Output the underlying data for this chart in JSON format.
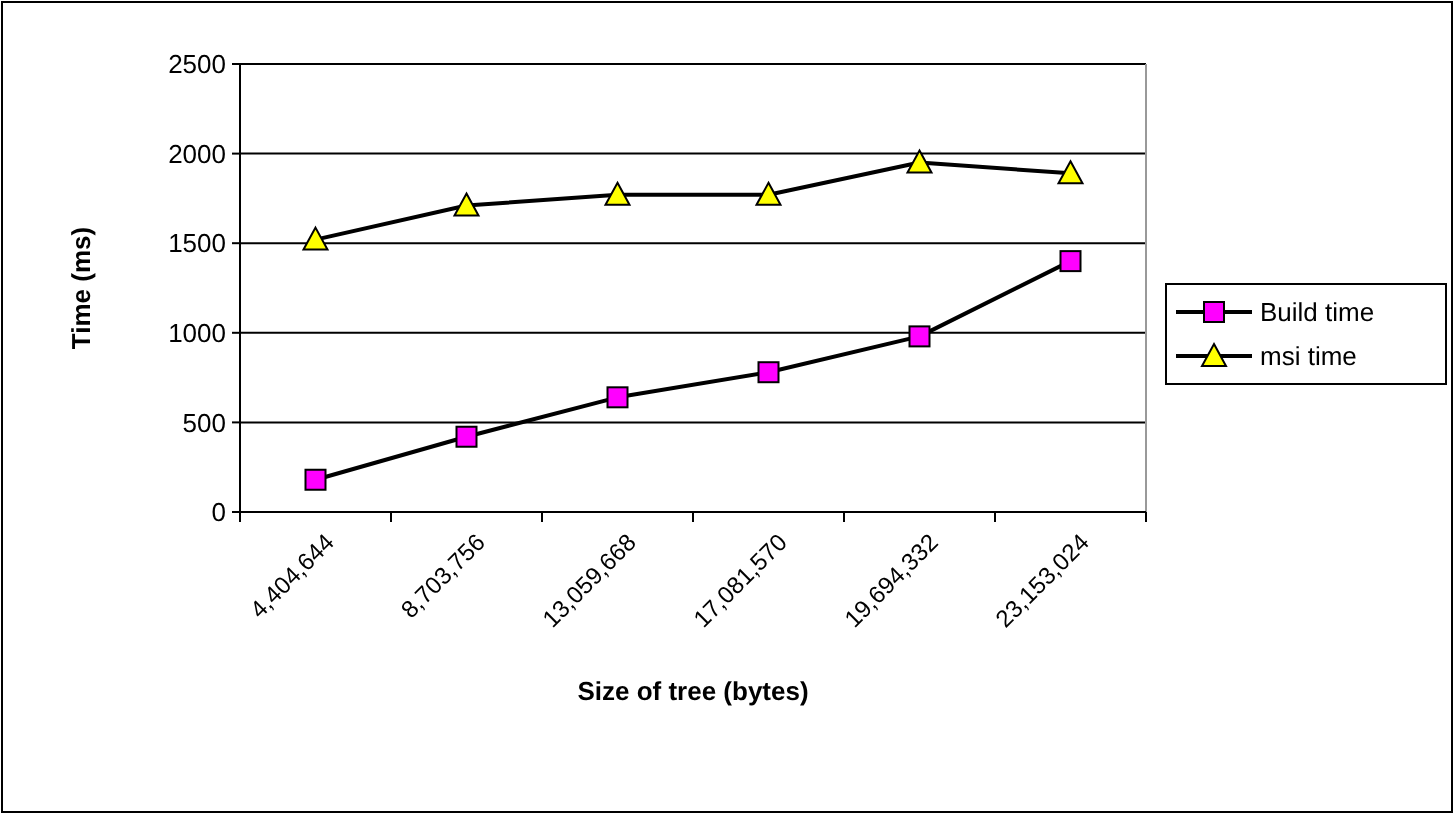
{
  "chart_data": {
    "type": "line",
    "xlabel": "Size of tree (bytes)",
    "ylabel": "Time (ms)",
    "categories": [
      "4,404,644",
      "8,703,756",
      "13,059,668",
      "17,081,570",
      "19,694,332",
      "23,153,024"
    ],
    "series": [
      {
        "name": "Build time",
        "color": "#ff00ff",
        "marker": "square",
        "values": [
          180,
          420,
          640,
          780,
          980,
          1400
        ]
      },
      {
        "name": "msi time",
        "color": "#ffff00",
        "marker": "triangle",
        "values": [
          1520,
          1710,
          1770,
          1770,
          1950,
          1890
        ]
      }
    ],
    "ylim": [
      0,
      2500
    ],
    "yticks": [
      0,
      500,
      1000,
      1500,
      2000,
      2500
    ],
    "grid": "y",
    "legend": "right"
  }
}
